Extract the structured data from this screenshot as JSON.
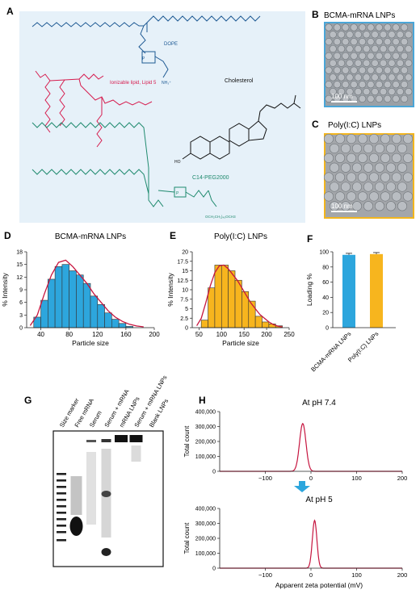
{
  "panels": {
    "A": {
      "letter": "A",
      "labels": {
        "dope": "DOPE",
        "ionizable": "Ionizable lipid, Lipid 5",
        "cholesterol": "Cholesterol",
        "peg": "C14-PEG2000",
        "ho": "HO",
        "nh3": "NH₃⁺",
        "oo": "OCH₂CH₂)₄₅OCH3"
      },
      "colors": {
        "background": "#e6f1f9",
        "dope": "#1f5a94",
        "ionizable": "#d61c4e",
        "cholesterol": "#111111",
        "peg": "#1f8a6e"
      }
    },
    "B": {
      "letter": "B",
      "title": "BCMA-mRNA LNPs",
      "scale": "100 nm",
      "border": "#4aa6d8"
    },
    "C": {
      "letter": "C",
      "title": "Poly(I:C) LNPs",
      "scale": "100 nm",
      "border": "#f2b51e"
    },
    "G": {
      "letter": "G",
      "lanes": [
        "Size marker",
        "Free mRNA",
        "Serum",
        "Serum + mRNA",
        "mRNA LNPs",
        "Serum + mRNA LNPs",
        "Blank LNPs"
      ]
    }
  },
  "chart_data": [
    {
      "id": "D",
      "letter": "D",
      "type": "bar",
      "title": "BCMA-mRNA LNPs",
      "xlabel": "Particle size",
      "ylabel": "% Intensity",
      "xlim": [
        20,
        200
      ],
      "ylim": [
        0,
        18
      ],
      "xticks": [
        40,
        80,
        120,
        160,
        200
      ],
      "yticks": [
        0,
        3,
        6,
        9,
        12,
        15,
        18
      ],
      "bin_width": 10,
      "bin_starts": [
        30,
        40,
        50,
        60,
        70,
        80,
        90,
        100,
        110,
        120,
        130,
        140,
        150,
        160
      ],
      "values": [
        2.5,
        6.5,
        11.5,
        14.5,
        15.0,
        13.5,
        12.5,
        10.5,
        7.5,
        5.5,
        3.5,
        2.0,
        1.0,
        0.3
      ],
      "fit_x": [
        25,
        35,
        45,
        55,
        65,
        75,
        85,
        95,
        105,
        115,
        125,
        135,
        145,
        155,
        165,
        175,
        185
      ],
      "fit_y": [
        0.5,
        3.0,
        8.0,
        12.5,
        15.5,
        16.0,
        14.5,
        12.5,
        10.5,
        8.0,
        6.0,
        4.0,
        2.5,
        1.5,
        0.8,
        0.4,
        0.2
      ],
      "colors": {
        "bar": "#2da6dd",
        "fit": "#c6153f"
      }
    },
    {
      "id": "E",
      "letter": "E",
      "type": "bar",
      "title": "Poly(I:C) LNPs",
      "xlabel": "Particle size",
      "ylabel": "% Intensity",
      "xlim": [
        35,
        250
      ],
      "ylim": [
        0,
        20
      ],
      "xticks": [
        50,
        100,
        150,
        200,
        250
      ],
      "yticks": [
        0,
        2.5,
        5,
        7.5,
        10,
        12.5,
        15,
        17.5,
        20
      ],
      "bin_width": 15,
      "bin_starts": [
        55,
        70,
        85,
        100,
        115,
        130,
        145,
        160,
        175,
        190,
        205,
        220
      ],
      "values": [
        2.0,
        10.5,
        16.5,
        16.5,
        15.0,
        12.5,
        9.5,
        7.0,
        3.0,
        1.5,
        1.0,
        0.5
      ],
      "fit_x": [
        45,
        55,
        65,
        75,
        85,
        95,
        105,
        115,
        125,
        135,
        145,
        155,
        165,
        175,
        185,
        195,
        205,
        215,
        225,
        235
      ],
      "fit_y": [
        0.5,
        2.5,
        6.5,
        11.0,
        14.5,
        16.3,
        16.5,
        15.5,
        14.0,
        12.5,
        10.5,
        8.5,
        6.5,
        5.0,
        3.5,
        2.5,
        1.5,
        0.8,
        0.4,
        0.2
      ],
      "colors": {
        "bar": "#f7b51e",
        "fit": "#c6153f"
      }
    },
    {
      "id": "F",
      "letter": "F",
      "type": "bar",
      "ylabel": "Loading %",
      "ylim": [
        0,
        100
      ],
      "yticks": [
        0,
        20,
        40,
        60,
        80,
        100
      ],
      "categories": [
        "BCMA-mRNA LNPs",
        "Poly(I:C) LNPs"
      ],
      "values": [
        96,
        97
      ],
      "errors": [
        2,
        2
      ],
      "colors": [
        "#2da6dd",
        "#f7b51e"
      ]
    },
    {
      "id": "H1",
      "letter": "H",
      "type": "line",
      "title": "At pH 7.4",
      "xlabel": "",
      "ylabel": "Total count",
      "xlim": [
        -200,
        200
      ],
      "ylim": [
        0,
        400000
      ],
      "xticks": [
        -100,
        0,
        100,
        200
      ],
      "yticks": [
        0,
        100000,
        200000,
        300000,
        400000
      ],
      "ytick_labels": [
        "0",
        "100,000",
        "200,000",
        "300,000",
        "400,000"
      ],
      "series": [
        {
          "peak_center": -18,
          "peak_width": 7,
          "peak_height": 320000
        }
      ],
      "colors": {
        "line": "#c6153f"
      }
    },
    {
      "id": "H2",
      "type": "line",
      "title": "At pH 5",
      "xlabel": "Apparent zeta potential (mV)",
      "ylabel": "Total count",
      "xlim": [
        -200,
        200
      ],
      "ylim": [
        0,
        400000
      ],
      "xticks": [
        -100,
        0,
        100,
        200
      ],
      "yticks": [
        0,
        100000,
        200000,
        300000,
        400000
      ],
      "ytick_labels": [
        "0",
        "100,000",
        "200,000",
        "300,000",
        "400,000"
      ],
      "series": [
        {
          "peak_center": 8,
          "peak_width": 5,
          "peak_height": 320000
        }
      ],
      "colors": {
        "line": "#c6153f",
        "arrow": "#2da6dd"
      }
    }
  ]
}
